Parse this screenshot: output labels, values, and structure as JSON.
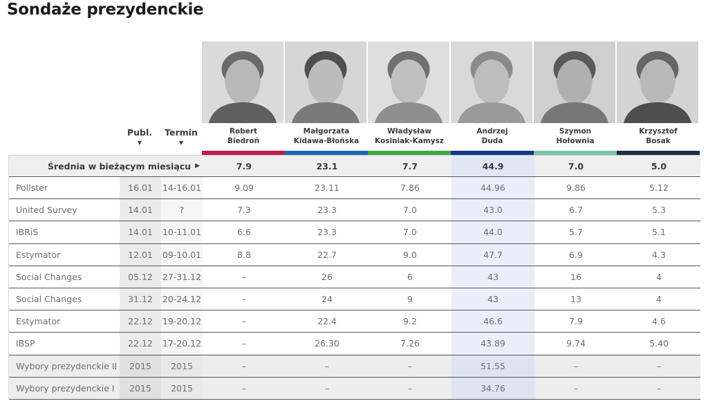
{
  "page": {
    "title": "Sondaże prezydenckie"
  },
  "sort_controls": {
    "publ": {
      "label": "Publ.",
      "icon": "▼"
    },
    "termin": {
      "label": "Termin",
      "icon": "▼"
    }
  },
  "colors": {
    "highlight_column": "#e9eef9",
    "highlight_column_avg": "#dfe7f3",
    "highlight_column_hist": "#dde4f0",
    "row_line": "#565656"
  },
  "candidates": [
    {
      "first_name": "Robert",
      "last_name": "Biedroń",
      "bar_color": "#bf1d4d",
      "highlighted": false
    },
    {
      "first_name": "Małgorzata",
      "last_name": "Kidawa-Błońska",
      "bar_color": "#1f64b5",
      "highlighted": false
    },
    {
      "first_name": "Władysław",
      "last_name": "Kosiniak-Kamysz",
      "bar_color": "#45a645",
      "highlighted": false
    },
    {
      "first_name": "Andrzej",
      "last_name": "Duda",
      "bar_color": "#14378f",
      "highlighted": true
    },
    {
      "first_name": "Szymon",
      "last_name": "Hołownia",
      "bar_color": "#77c2a4",
      "highlighted": false
    },
    {
      "first_name": "Krzysztof",
      "last_name": "Bosak",
      "bar_color": "#1f2d47",
      "highlighted": false
    }
  ],
  "average_row": {
    "label": "Średnia w bieżącym miesiącu",
    "arrow_icon": "▶",
    "values": [
      "7.9",
      "23.1",
      "7.7",
      "44.9",
      "7.0",
      "5.0"
    ]
  },
  "rows": [
    {
      "name": "Pollster",
      "publ": "16.01",
      "termin": "14-16.01",
      "values": [
        "9.09",
        "23.11",
        "7.86",
        "44.96",
        "9.86",
        "5.12"
      ],
      "historical": false
    },
    {
      "name": "United Survey",
      "publ": "14.01",
      "termin": "?",
      "values": [
        "7.3",
        "23.3",
        "7.0",
        "43.0",
        "6.7",
        "5.3"
      ],
      "historical": false
    },
    {
      "name": "IBRiS",
      "publ": "14.01",
      "termin": "10-11.01",
      "values": [
        "6.6",
        "23.3",
        "7.0",
        "44.0",
        "5.7",
        "5.1"
      ],
      "historical": false
    },
    {
      "name": "Estymator",
      "publ": "12.01",
      "termin": "09-10.01",
      "values": [
        "8.8",
        "22.7",
        "9.0",
        "47.7",
        "6.9",
        "4.3"
      ],
      "historical": false
    },
    {
      "name": "Social Changes",
      "publ": "05.12",
      "termin": "27-31.12",
      "values": [
        "–",
        "26",
        "6",
        "43",
        "16",
        "4"
      ],
      "historical": false
    },
    {
      "name": "Social Changes",
      "publ": "31.12",
      "termin": "20-24.12",
      "values": [
        "–",
        "24",
        "9",
        "43",
        "13",
        "4"
      ],
      "historical": false
    },
    {
      "name": "Estymator",
      "publ": "22.12",
      "termin": "19-20.12",
      "values": [
        "–",
        "22.4",
        "9.2",
        "46.6",
        "7.9",
        "4.6"
      ],
      "historical": false
    },
    {
      "name": "IBSP",
      "publ": "22.12",
      "termin": "17-20.12",
      "values": [
        "–",
        "26.30",
        "7.26",
        "43.89",
        "9.74",
        "5.40"
      ],
      "historical": false
    },
    {
      "name": "Wybory prezydenckie II",
      "publ": "2015",
      "termin": "2015",
      "values": [
        "–",
        "–",
        "–",
        "51.55",
        "–",
        "–"
      ],
      "historical": true
    },
    {
      "name": "Wybory prezydenckie I",
      "publ": "2015",
      "termin": "2015",
      "values": [
        "–",
        "–",
        "–",
        "34.76",
        "–",
        "–"
      ],
      "historical": true
    }
  ]
}
